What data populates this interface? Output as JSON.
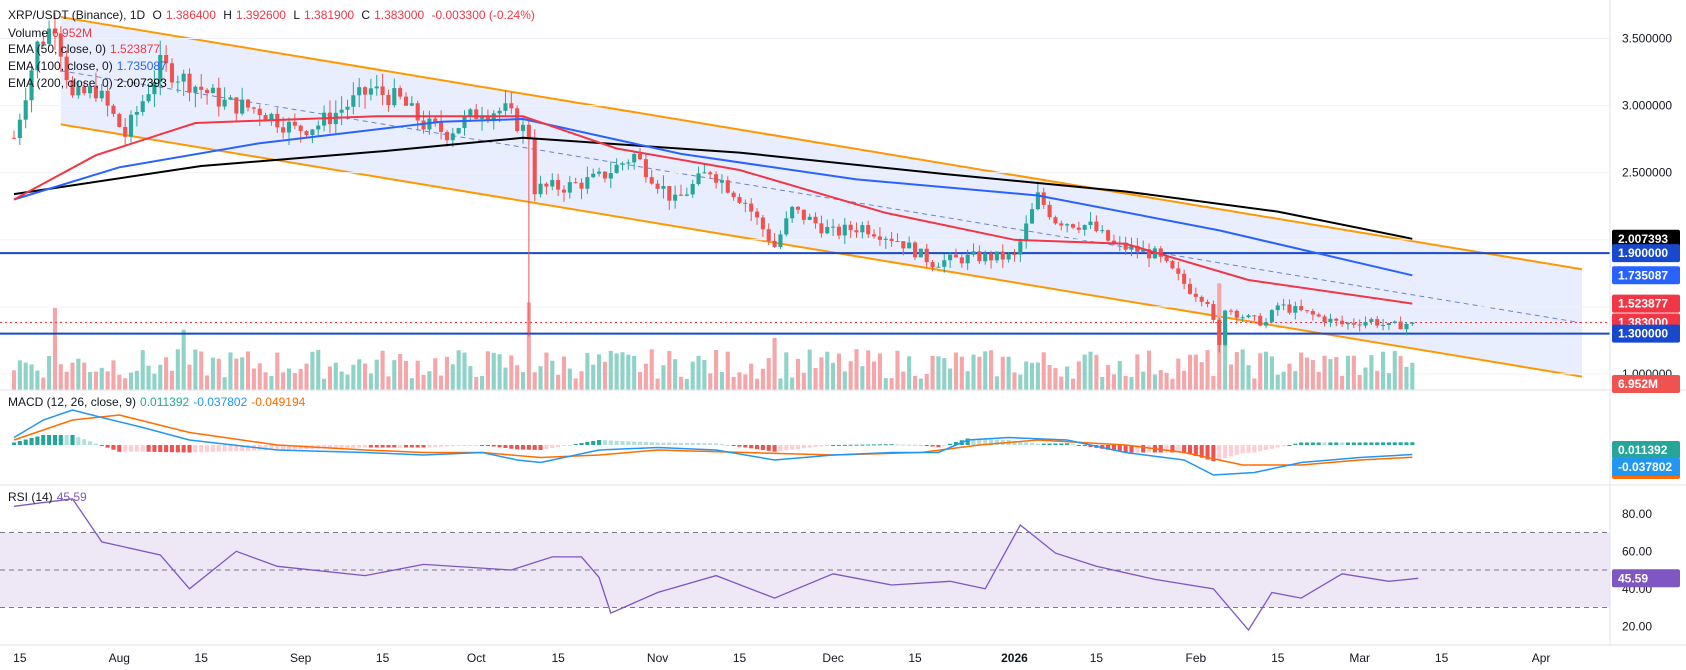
{
  "header": {
    "symbol": "XRP/USDT (Binance), 1D",
    "open_label": "O",
    "open": "1.386400",
    "high_label": "H",
    "high": "1.392600",
    "low_label": "L",
    "low": "1.381900",
    "close_label": "C",
    "close": "1.383000",
    "change": "-0.003300 (-0.24%)"
  },
  "legend": {
    "volume_label": "Volume",
    "volume_value": "6.952M",
    "ema50_label": "EMA (50, close, 0)",
    "ema50_value": "1.523877",
    "ema100_label": "EMA (100, close, 0)",
    "ema100_value": "1.735087",
    "ema200_label": "EMA (200, close, 0)",
    "ema200_value": "2.007393",
    "macd_label": "MACD (12, 26, close, 9)",
    "macd_hist": "0.011392",
    "macd_line": "-0.037802",
    "macd_signal": "-0.049194",
    "rsi_label": "RSI (14)",
    "rsi_value": "45.59"
  },
  "colors": {
    "up": "#26a69a",
    "down": "#ef5350",
    "vol_up": "#8fd3c8",
    "vol_down": "#f4a6a9",
    "ema50": "#f23645",
    "ema100": "#2962ff",
    "ema200": "#000000",
    "channel": "#ff9800",
    "channel_fill": "#e3eaff",
    "hline": "#1848cc",
    "macd": "#2196f3",
    "signal": "#ff6d00",
    "rsi": "#7e57c2",
    "rsi_band": "#ede7f6"
  },
  "chart_data": [
    {
      "type": "candlestick",
      "title": "XRP/USDT (Binance), 1D",
      "x_ticks": [
        "15",
        "Aug",
        "15",
        "Sep",
        "15",
        "Oct",
        "15",
        "Nov",
        "15",
        "Dec",
        "15",
        "2026",
        "15",
        "Feb",
        "15",
        "Mar",
        "15",
        "Apr"
      ],
      "x_range": [
        "2025-07-14",
        "2026-04-08"
      ],
      "ylim": [
        0.88,
        3.75
      ],
      "y_ticks": [
        1.0,
        1.5,
        2.0,
        2.5,
        3.0,
        3.5
      ],
      "y_tick_labels": [
        "1.000000",
        "1.500000",
        "2.000000",
        "2.500000",
        "3.000000",
        "3.500000"
      ],
      "keypoints": [
        [
          "2025-07-14",
          2.76
        ],
        [
          "2025-07-18",
          3.45
        ],
        [
          "2025-07-21",
          3.62
        ],
        [
          "2025-07-24",
          3.05
        ],
        [
          "2025-07-28",
          3.12
        ],
        [
          "2025-08-02",
          2.78
        ],
        [
          "2025-08-08",
          3.3
        ],
        [
          "2025-08-14",
          3.15
        ],
        [
          "2025-08-19",
          3.02
        ],
        [
          "2025-08-25",
          2.97
        ],
        [
          "2025-08-31",
          2.82
        ],
        [
          "2025-09-04",
          2.86
        ],
        [
          "2025-09-13",
          3.12
        ],
        [
          "2025-09-18",
          3.04
        ],
        [
          "2025-09-22",
          2.86
        ],
        [
          "2025-09-26",
          2.8
        ],
        [
          "2025-10-02",
          2.97
        ],
        [
          "2025-10-06",
          2.96
        ],
        [
          "2025-10-10",
          2.78
        ],
        [
          "2025-10-11",
          2.38
        ],
        [
          "2025-10-17",
          2.4
        ],
        [
          "2025-10-22",
          2.46
        ],
        [
          "2025-10-28",
          2.63
        ],
        [
          "2025-11-04",
          2.28
        ],
        [
          "2025-11-10",
          2.52
        ],
        [
          "2025-11-16",
          2.28
        ],
        [
          "2025-11-21",
          1.95
        ],
        [
          "2025-11-24",
          2.22
        ],
        [
          "2025-12-01",
          2.05
        ],
        [
          "2025-12-06",
          2.1
        ],
        [
          "2025-12-12",
          2.0
        ],
        [
          "2025-12-18",
          1.83
        ],
        [
          "2025-12-25",
          1.87
        ],
        [
          "2026-01-01",
          1.87
        ],
        [
          "2026-01-05",
          2.32
        ],
        [
          "2026-01-08",
          2.15
        ],
        [
          "2026-01-14",
          2.1
        ],
        [
          "2026-01-18",
          1.96
        ],
        [
          "2026-01-25",
          1.89
        ],
        [
          "2026-01-31",
          1.63
        ],
        [
          "2026-02-03",
          1.55
        ],
        [
          "2026-02-05",
          1.2
        ],
        [
          "2026-02-06",
          1.5
        ],
        [
          "2026-02-10",
          1.41
        ],
        [
          "2026-02-13",
          1.38
        ],
        [
          "2026-02-15",
          1.51
        ],
        [
          "2026-02-20",
          1.45
        ],
        [
          "2026-02-26",
          1.37
        ],
        [
          "2026-03-03",
          1.4
        ],
        [
          "2026-03-06",
          1.35
        ],
        [
          "2026-03-10",
          1.383
        ]
      ],
      "ema50": [
        [
          "2025-07-14",
          2.3
        ],
        [
          "2025-07-28",
          2.63
        ],
        [
          "2025-08-14",
          2.87
        ],
        [
          "2025-09-14",
          2.92
        ],
        [
          "2025-10-09",
          2.92
        ],
        [
          "2025-10-25",
          2.68
        ],
        [
          "2025-11-15",
          2.52
        ],
        [
          "2025-12-10",
          2.2
        ],
        [
          "2026-01-01",
          2.0
        ],
        [
          "2026-01-20",
          1.97
        ],
        [
          "2026-02-10",
          1.7
        ],
        [
          "2026-03-10",
          1.524
        ]
      ],
      "ema100": [
        [
          "2025-07-14",
          2.3
        ],
        [
          "2025-08-01",
          2.54
        ],
        [
          "2025-08-25",
          2.72
        ],
        [
          "2025-09-25",
          2.88
        ],
        [
          "2025-10-09",
          2.9
        ],
        [
          "2025-11-05",
          2.64
        ],
        [
          "2025-12-05",
          2.45
        ],
        [
          "2026-01-05",
          2.33
        ],
        [
          "2026-02-05",
          2.07
        ],
        [
          "2026-03-10",
          1.735
        ]
      ],
      "ema200": [
        [
          "2025-07-14",
          2.34
        ],
        [
          "2025-08-15",
          2.55
        ],
        [
          "2025-09-15",
          2.66
        ],
        [
          "2025-10-09",
          2.76
        ],
        [
          "2025-11-15",
          2.65
        ],
        [
          "2025-12-20",
          2.49
        ],
        [
          "2026-01-20",
          2.36
        ],
        [
          "2026-02-15",
          2.21
        ],
        [
          "2026-03-10",
          2.007
        ]
      ],
      "channel_upper": [
        [
          "2025-07-22",
          3.66
        ],
        [
          "2026-04-08",
          1.78
        ]
      ],
      "channel_lower": [
        [
          "2025-07-22",
          2.86
        ],
        [
          "2026-04-08",
          0.98
        ]
      ],
      "channel_mid": [
        [
          "2025-07-22",
          3.26
        ],
        [
          "2026-04-08",
          1.38
        ]
      ],
      "horizontal_lines": [
        1.9,
        1.3
      ],
      "price_labels": [
        {
          "value": 2.007393,
          "label": "2.007393",
          "color": "#000000"
        },
        {
          "value": 1.9,
          "label": "1.900000",
          "color": "#1848cc"
        },
        {
          "value": 1.735087,
          "label": "1.735087",
          "color": "#2962ff"
        },
        {
          "value": 1.523877,
          "label": "1.523877",
          "color": "#f23645"
        },
        {
          "value": 1.383,
          "label": "1.383000",
          "color": "#f23645"
        },
        {
          "value": 1.3,
          "label": "1.300000",
          "color": "#1848cc"
        }
      ],
      "volume_label": "6.952M",
      "volume_max_m": 210,
      "volume_spikes_m": [
        [
          "2025-07-21",
          150
        ],
        [
          "2025-08-12",
          110
        ],
        [
          "2025-10-10",
          160
        ],
        [
          "2025-11-21",
          95
        ],
        [
          "2026-02-05",
          195
        ],
        [
          "2026-02-06",
          140
        ]
      ]
    },
    {
      "type": "line",
      "title": "MACD (12, 26, close, 9)",
      "ylim": [
        -0.16,
        0.16
      ],
      "series": [
        {
          "name": "MACD",
          "values": [
            [
              0,
              0.03
            ],
            [
              5,
              0.1
            ],
            [
              10,
              0.14
            ],
            [
              15,
              0.11
            ],
            [
              22,
              0.07
            ],
            [
              30,
              0.02
            ],
            [
              45,
              -0.02
            ],
            [
              60,
              -0.03
            ],
            [
              70,
              -0.04
            ],
            [
              80,
              -0.03
            ],
            [
              86,
              -0.06
            ],
            [
              90,
              -0.07
            ],
            [
              100,
              -0.02
            ],
            [
              110,
              -0.01
            ],
            [
              120,
              -0.02
            ],
            [
              130,
              -0.06
            ],
            [
              140,
              -0.04
            ],
            [
              150,
              -0.03
            ],
            [
              158,
              -0.03
            ],
            [
              163,
              0.02
            ],
            [
              170,
              0.03
            ],
            [
              180,
              0.02
            ],
            [
              190,
              -0.03
            ],
            [
              200,
              -0.06
            ],
            [
              205,
              -0.12
            ],
            [
              212,
              -0.11
            ],
            [
              220,
              -0.07
            ],
            [
              230,
              -0.05
            ],
            [
              239,
              -0.038
            ]
          ]
        },
        {
          "name": "Signal",
          "values": [
            [
              0,
              0.02
            ],
            [
              10,
              0.1
            ],
            [
              18,
              0.12
            ],
            [
              30,
              0.05
            ],
            [
              45,
              0.0
            ],
            [
              60,
              -0.02
            ],
            [
              70,
              -0.03
            ],
            [
              80,
              -0.03
            ],
            [
              90,
              -0.05
            ],
            [
              100,
              -0.04
            ],
            [
              110,
              -0.02
            ],
            [
              125,
              -0.03
            ],
            [
              140,
              -0.04
            ],
            [
              155,
              -0.03
            ],
            [
              165,
              0.0
            ],
            [
              175,
              0.02
            ],
            [
              190,
              0.0
            ],
            [
              200,
              -0.03
            ],
            [
              210,
              -0.08
            ],
            [
              220,
              -0.08
            ],
            [
              230,
              -0.06
            ],
            [
              239,
              -0.049
            ]
          ]
        }
      ],
      "values_shown": [
        "0.011392",
        "-0.037802",
        "-0.049194"
      ]
    },
    {
      "type": "line",
      "title": "RSI (14)",
      "ylim": [
        10,
        90
      ],
      "y_ticks": [
        20,
        40,
        60,
        80
      ],
      "y_tick_labels": [
        "20.00",
        "40.00",
        "60.00",
        "80.00"
      ],
      "bands": [
        30,
        50,
        70
      ],
      "values": [
        [
          0,
          84
        ],
        [
          10,
          88
        ],
        [
          15,
          65
        ],
        [
          25,
          58
        ],
        [
          30,
          40
        ],
        [
          38,
          60
        ],
        [
          45,
          52
        ],
        [
          60,
          47
        ],
        [
          70,
          53
        ],
        [
          85,
          50
        ],
        [
          92,
          57
        ],
        [
          97,
          57
        ],
        [
          100,
          46
        ],
        [
          102,
          27
        ],
        [
          110,
          38
        ],
        [
          120,
          47
        ],
        [
          130,
          35
        ],
        [
          140,
          48
        ],
        [
          150,
          42
        ],
        [
          160,
          44
        ],
        [
          166,
          40
        ],
        [
          172,
          74
        ],
        [
          178,
          59
        ],
        [
          185,
          52
        ],
        [
          195,
          45
        ],
        [
          205,
          40
        ],
        [
          211,
          18
        ],
        [
          215,
          38
        ],
        [
          220,
          35
        ],
        [
          227,
          48
        ],
        [
          235,
          44
        ],
        [
          240,
          45.59
        ]
      ],
      "value_shown": "45.59"
    }
  ]
}
